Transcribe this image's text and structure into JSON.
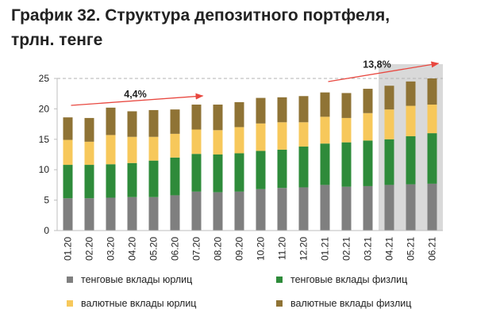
{
  "title_line1": "График 32. Структура депозитного портфеля,",
  "title_line2": "трлн. тенге",
  "chart_data": {
    "type": "bar",
    "stacked": true,
    "categories": [
      "01.20",
      "02.20",
      "03.20",
      "04.20",
      "05.20",
      "06.20",
      "07.20",
      "08.20",
      "09.20",
      "10.20",
      "11.20",
      "12.20",
      "01.21",
      "02.21",
      "03.21",
      "04.21",
      "05.21",
      "06.21"
    ],
    "series": [
      {
        "name": "тенговые вклады юрлиц",
        "color": "#7f7f7f",
        "values": [
          5.3,
          5.3,
          5.4,
          5.5,
          5.5,
          5.8,
          6.4,
          6.3,
          6.4,
          6.8,
          7.0,
          7.1,
          7.5,
          7.2,
          7.3,
          7.5,
          7.6,
          7.7
        ]
      },
      {
        "name": "тенговые вклады физлиц",
        "color": "#2e8b3a",
        "values": [
          5.5,
          5.5,
          5.5,
          5.6,
          6.0,
          6.2,
          6.2,
          6.2,
          6.3,
          6.3,
          6.3,
          6.7,
          6.8,
          7.3,
          7.5,
          7.5,
          7.9,
          8.3
        ]
      },
      {
        "name": "валютные вклады юрлиц",
        "color": "#f7c85b",
        "values": [
          4.1,
          3.8,
          4.8,
          4.3,
          3.9,
          3.9,
          4.0,
          4.0,
          4.3,
          4.5,
          4.5,
          4.0,
          4.4,
          4.0,
          4.5,
          4.9,
          5.0,
          4.7
        ]
      },
      {
        "name": "валютные вклады физлиц",
        "color": "#8f7335",
        "values": [
          3.7,
          3.9,
          4.5,
          4.2,
          4.4,
          4.0,
          4.1,
          4.2,
          4.1,
          4.2,
          4.1,
          4.3,
          4.0,
          4.1,
          4.0,
          3.9,
          4.0,
          4.3
        ]
      }
    ],
    "ylim": [
      0,
      25
    ],
    "yticks": [
      0,
      5,
      10,
      15,
      20,
      25
    ],
    "gridlines": false,
    "highlighted_categories": [
      "04.21",
      "05.21",
      "06.21"
    ],
    "annotations": [
      {
        "text": "4,4%",
        "from_category": "01.20",
        "to_category": "07.20"
      },
      {
        "text": "13,8%",
        "from_category": "01.21",
        "to_category": "06.21"
      }
    ],
    "legend_position": "bottom",
    "reference_line_value": 25
  }
}
